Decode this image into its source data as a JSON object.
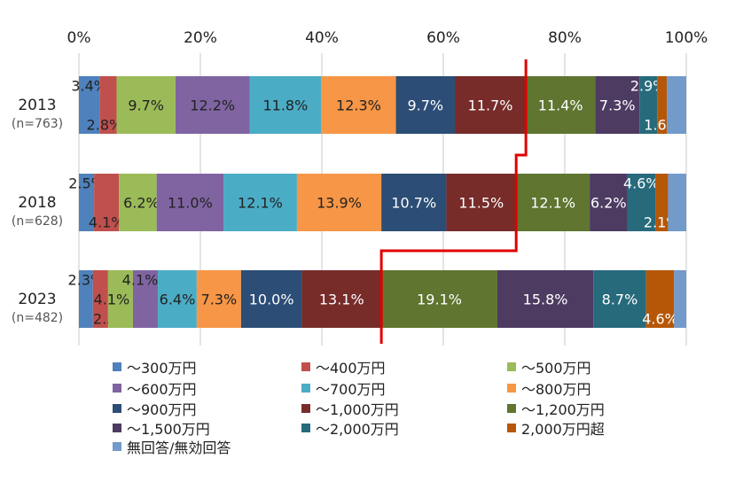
{
  "chart_data": {
    "type": "bar",
    "orientation": "horizontal",
    "stacked": "100%",
    "xlim": [
      0,
      100
    ],
    "x_ticks": [
      "0%",
      "20%",
      "40%",
      "60%",
      "80%",
      "100%"
    ],
    "categories": [
      {
        "year": "2013",
        "n": "(n=763)"
      },
      {
        "year": "2018",
        "n": "(n=628)"
      },
      {
        "year": "2023",
        "n": "(n=482)"
      }
    ],
    "series": [
      {
        "name": "～300万円",
        "color": "#4f81bd",
        "values": [
          3.4,
          2.5,
          2.3
        ]
      },
      {
        "name": "～400万円",
        "color": "#c0504d",
        "values": [
          2.8,
          4.1,
          2.5
        ]
      },
      {
        "name": "～500万円",
        "color": "#9bbb59",
        "values": [
          9.7,
          6.2,
          4.1
        ]
      },
      {
        "name": "～600万円",
        "color": "#8064a2",
        "values": [
          12.2,
          11.0,
          4.1
        ]
      },
      {
        "name": "～700万円",
        "color": "#4bacc6",
        "values": [
          11.8,
          12.1,
          6.4
        ]
      },
      {
        "name": "～800万円",
        "color": "#f79646",
        "values": [
          12.3,
          13.9,
          7.3
        ]
      },
      {
        "name": "～900万円",
        "color": "#2c4d75",
        "values": [
          9.7,
          10.7,
          10.0
        ]
      },
      {
        "name": "～1,000万円",
        "color": "#772c2a",
        "values": [
          11.7,
          11.5,
          13.1
        ]
      },
      {
        "name": "～1,200万円",
        "color": "#5f7530",
        "values": [
          11.4,
          12.1,
          19.1
        ]
      },
      {
        "name": "～1,500万円",
        "color": "#4d3b62",
        "values": [
          7.3,
          6.2,
          15.8
        ]
      },
      {
        "name": "～2,000万円",
        "color": "#276a7c",
        "values": [
          2.9,
          4.6,
          8.7
        ]
      },
      {
        "name": "2,000万円超",
        "color": "#b65708",
        "values": [
          1.6,
          2.1,
          4.6
        ]
      },
      {
        "name": "無回答/無効回答",
        "color": "#729aca",
        "values": [
          3.2,
          3.0,
          2.0
        ]
      }
    ],
    "labels_shown": [
      [
        true,
        true,
        true,
        true,
        true,
        true,
        true,
        true,
        true,
        true,
        true,
        true,
        false
      ],
      [
        true,
        true,
        true,
        true,
        true,
        true,
        true,
        true,
        true,
        true,
        true,
        true,
        false
      ],
      [
        true,
        true,
        true,
        true,
        true,
        true,
        true,
        true,
        true,
        true,
        true,
        true,
        false
      ]
    ],
    "reference_line": {
      "description_value": "cumulative share up to ～1,000万円",
      "values": [
        73.6,
        72.0,
        49.8
      ],
      "color": "#e00000"
    },
    "grid": true,
    "legend": "bottom"
  }
}
